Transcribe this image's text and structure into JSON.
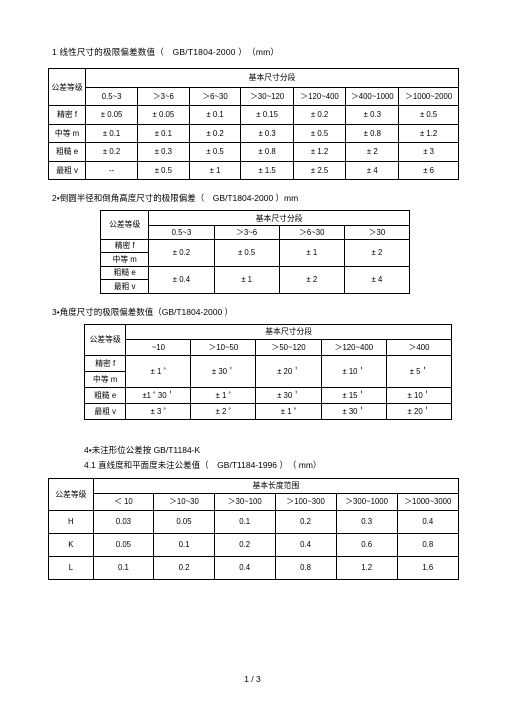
{
  "section1": {
    "title": "1 线性尺寸的极限偏差数值（　GB/T1804-2000 ）　（mm）",
    "grade_label": "公差等级",
    "span_label": "基本尺寸分段",
    "head": [
      "0.5~3",
      "＞3~6",
      "＞6~30",
      "＞30~120",
      "＞120~400",
      "＞400~1000",
      "＞1000~2000"
    ],
    "rows": [
      {
        "g": "精密 f",
        "v": [
          "± 0.05",
          "± 0.05",
          "± 0.1",
          "± 0.15",
          "± 0.2",
          "± 0.3",
          "± 0.5"
        ]
      },
      {
        "g": "中等 m",
        "v": [
          "± 0.1",
          "± 0.1",
          "± 0.2",
          "± 0.3",
          "± 0.5",
          "± 0.8",
          "± 1.2"
        ]
      },
      {
        "g": "粗糙 e",
        "v": [
          "± 0.2",
          "± 0.3",
          "± 0.5",
          "± 0.8",
          "± 1.2",
          "± 2",
          "± 3"
        ]
      },
      {
        "g": "最粗 v",
        "v": [
          "--",
          "± 0.5",
          "± 1",
          "± 1.5",
          "± 2.5",
          "± 4",
          "± 6"
        ]
      }
    ]
  },
  "section2": {
    "title": "2•倒圆半径和倒角高度尺寸的极限偏差（　GB/T1804-2000 ）mm",
    "grade_label": "公差等级",
    "span_label": "基本尺寸分段",
    "head": [
      "0.5~3",
      "＞3~6",
      "＞6~30",
      "＞30"
    ],
    "groups": [
      {
        "labels": [
          "精密 f",
          "中等 m"
        ],
        "v": [
          "± 0.2",
          "± 0.5",
          "± 1",
          "± 2"
        ]
      },
      {
        "labels": [
          "粗糙 e",
          "最粗 v"
        ],
        "v": [
          "± 0.4",
          "± 1",
          "± 2",
          "± 4"
        ]
      }
    ]
  },
  "section3": {
    "title": "3•角度尺寸的极限偏差数值（GB/T1804-2000 ）",
    "grade_label": "公差等级",
    "span_label": "基本尺寸分段",
    "head": [
      "~10",
      "＞10~50",
      "＞50~120",
      "＞120~400",
      "＞400"
    ],
    "group1": {
      "labels": [
        "精密 f",
        "中等 m"
      ],
      "v": [
        "± 1 ˚",
        "± 30＇",
        "± 20＇",
        "± 10＇",
        "± 5＇"
      ]
    },
    "rows": [
      {
        "g": "粗糙 e",
        "v": [
          "±1 ˚ 30＇",
          "± 1 ˚",
          "± 30＇",
          "± 15＇",
          "± 10＇"
        ]
      },
      {
        "g": "最粗 v",
        "v": [
          "± 3 ˚",
          "± 2 ˚",
          "± 1 ˚",
          "± 30＇",
          "± 20＇"
        ]
      }
    ]
  },
  "section4": {
    "title": "4•未注形位公差按  GB/T1184-K",
    "subtitle": "4.1 直线度和平面度未注公差值（　GB/T1184-1996 ）　（ mm）",
    "grade_label": "公差等级",
    "span_label": "基本长度范围",
    "head": [
      "＜ 10",
      "＞10~30",
      "＞30~100",
      "＞100~300",
      "＞300~1000",
      "＞1000~3000"
    ],
    "rows": [
      {
        "g": "H",
        "v": [
          "0.03",
          "0.05",
          "0.1",
          "0.2",
          "0.3",
          "0.4"
        ]
      },
      {
        "g": "K",
        "v": [
          "0.05",
          "0.1",
          "0.2",
          "0.4",
          "0.6",
          "0.8"
        ]
      },
      {
        "g": "L",
        "v": [
          "0.1",
          "0.2",
          "0.4",
          "0.8",
          "1.2",
          "1.6"
        ]
      }
    ]
  },
  "footer": "1 / 3"
}
